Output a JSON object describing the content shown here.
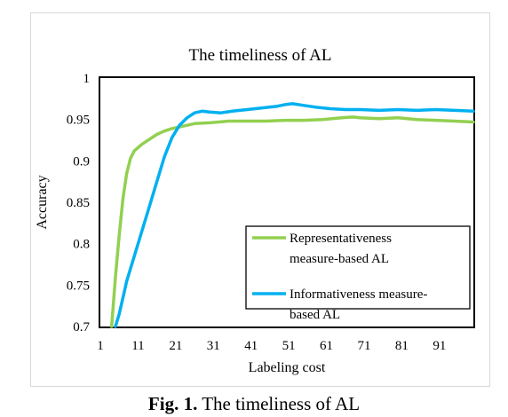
{
  "figure_caption": {
    "label": "Fig. 1.",
    "text": " The timeliness of AL"
  },
  "chart_data": {
    "type": "line",
    "title": "The timeliness of AL",
    "xlabel": "Labeling cost",
    "ylabel": "Accuracy",
    "xlim": [
      1,
      100
    ],
    "ylim": [
      0.7,
      1.0
    ],
    "x_ticks": [
      1,
      11,
      21,
      31,
      41,
      51,
      61,
      71,
      81,
      91
    ],
    "y_ticks": [
      0.7,
      0.75,
      0.8,
      0.85,
      0.9,
      0.95,
      1.0
    ],
    "y_tick_labels": [
      "0.7",
      "0.75",
      "0.8",
      "0.85",
      "0.9",
      "0.95",
      "1"
    ],
    "grid": false,
    "legend_position": "bottom-right",
    "series": [
      {
        "name": "Representativeness measure-based AL",
        "legend_lines": [
          "Representativeness",
          "measure-based AL"
        ],
        "color": "#92d050",
        "x": [
          4,
          5,
          6,
          7,
          8,
          9,
          10,
          12,
          14,
          16,
          18,
          20,
          22,
          24,
          26,
          30,
          35,
          40,
          45,
          50,
          55,
          60,
          65,
          68,
          70,
          75,
          80,
          85,
          90,
          95,
          100
        ],
        "y": [
          0.7,
          0.76,
          0.81,
          0.855,
          0.885,
          0.903,
          0.912,
          0.92,
          0.926,
          0.932,
          0.936,
          0.939,
          0.941,
          0.943,
          0.945,
          0.946,
          0.948,
          0.948,
          0.948,
          0.949,
          0.949,
          0.95,
          0.952,
          0.953,
          0.952,
          0.951,
          0.952,
          0.95,
          0.949,
          0.948,
          0.947
        ]
      },
      {
        "name": "Informativeness measure-based AL",
        "legend_lines": [
          "Informativeness measure-",
          "based AL"
        ],
        "color": "#00b0f0",
        "x": [
          5,
          6,
          7,
          8,
          10,
          12,
          14,
          16,
          18,
          20,
          22,
          24,
          26,
          28,
          30,
          33,
          36,
          40,
          44,
          48,
          50,
          52,
          55,
          58,
          62,
          66,
          70,
          75,
          80,
          85,
          90,
          95,
          100
        ],
        "y": [
          0.7,
          0.715,
          0.735,
          0.755,
          0.785,
          0.815,
          0.845,
          0.875,
          0.905,
          0.928,
          0.943,
          0.952,
          0.958,
          0.96,
          0.959,
          0.958,
          0.96,
          0.962,
          0.964,
          0.966,
          0.968,
          0.969,
          0.967,
          0.965,
          0.963,
          0.962,
          0.962,
          0.961,
          0.962,
          0.961,
          0.962,
          0.961,
          0.96
        ]
      }
    ]
  }
}
